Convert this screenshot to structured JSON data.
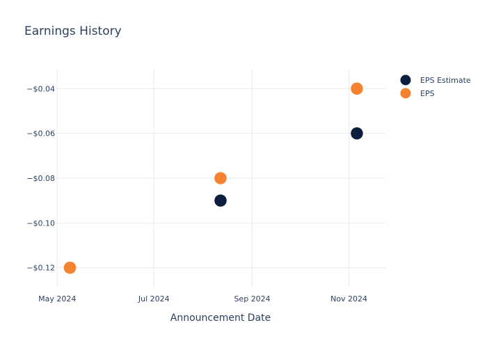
{
  "chart_data": {
    "type": "scatter",
    "title": "Earnings History",
    "xlabel": "Announcement Date",
    "ylabel": "",
    "x_ticks": [
      {
        "label": "May 2024",
        "date": "2024-05-01"
      },
      {
        "label": "Jul 2024",
        "date": "2024-07-01"
      },
      {
        "label": "Sep 2024",
        "date": "2024-09-01"
      },
      {
        "label": "Nov 2024",
        "date": "2024-11-01"
      }
    ],
    "xlim": [
      "2024-04-30",
      "2024-11-24"
    ],
    "y_ticks": [
      {
        "label": "−$0.12",
        "value": -0.12
      },
      {
        "label": "−$0.10",
        "value": -0.1
      },
      {
        "label": "−$0.08",
        "value": -0.08
      },
      {
        "label": "−$0.06",
        "value": -0.06
      },
      {
        "label": "−$0.04",
        "value": -0.04
      }
    ],
    "ylim": [
      -0.1285,
      -0.0315
    ],
    "grid": true,
    "legend_position": "top-right",
    "series": [
      {
        "name": "EPS Estimate",
        "color": "#0d1f3f",
        "points": [
          {
            "x": "2024-05-09",
            "y": -0.12
          },
          {
            "x": "2024-08-12",
            "y": -0.09
          },
          {
            "x": "2024-11-06",
            "y": -0.06
          }
        ]
      },
      {
        "name": "EPS",
        "color": "#f58231",
        "points": [
          {
            "x": "2024-05-09",
            "y": -0.12
          },
          {
            "x": "2024-08-12",
            "y": -0.08
          },
          {
            "x": "2024-11-06",
            "y": -0.04
          }
        ]
      }
    ]
  }
}
